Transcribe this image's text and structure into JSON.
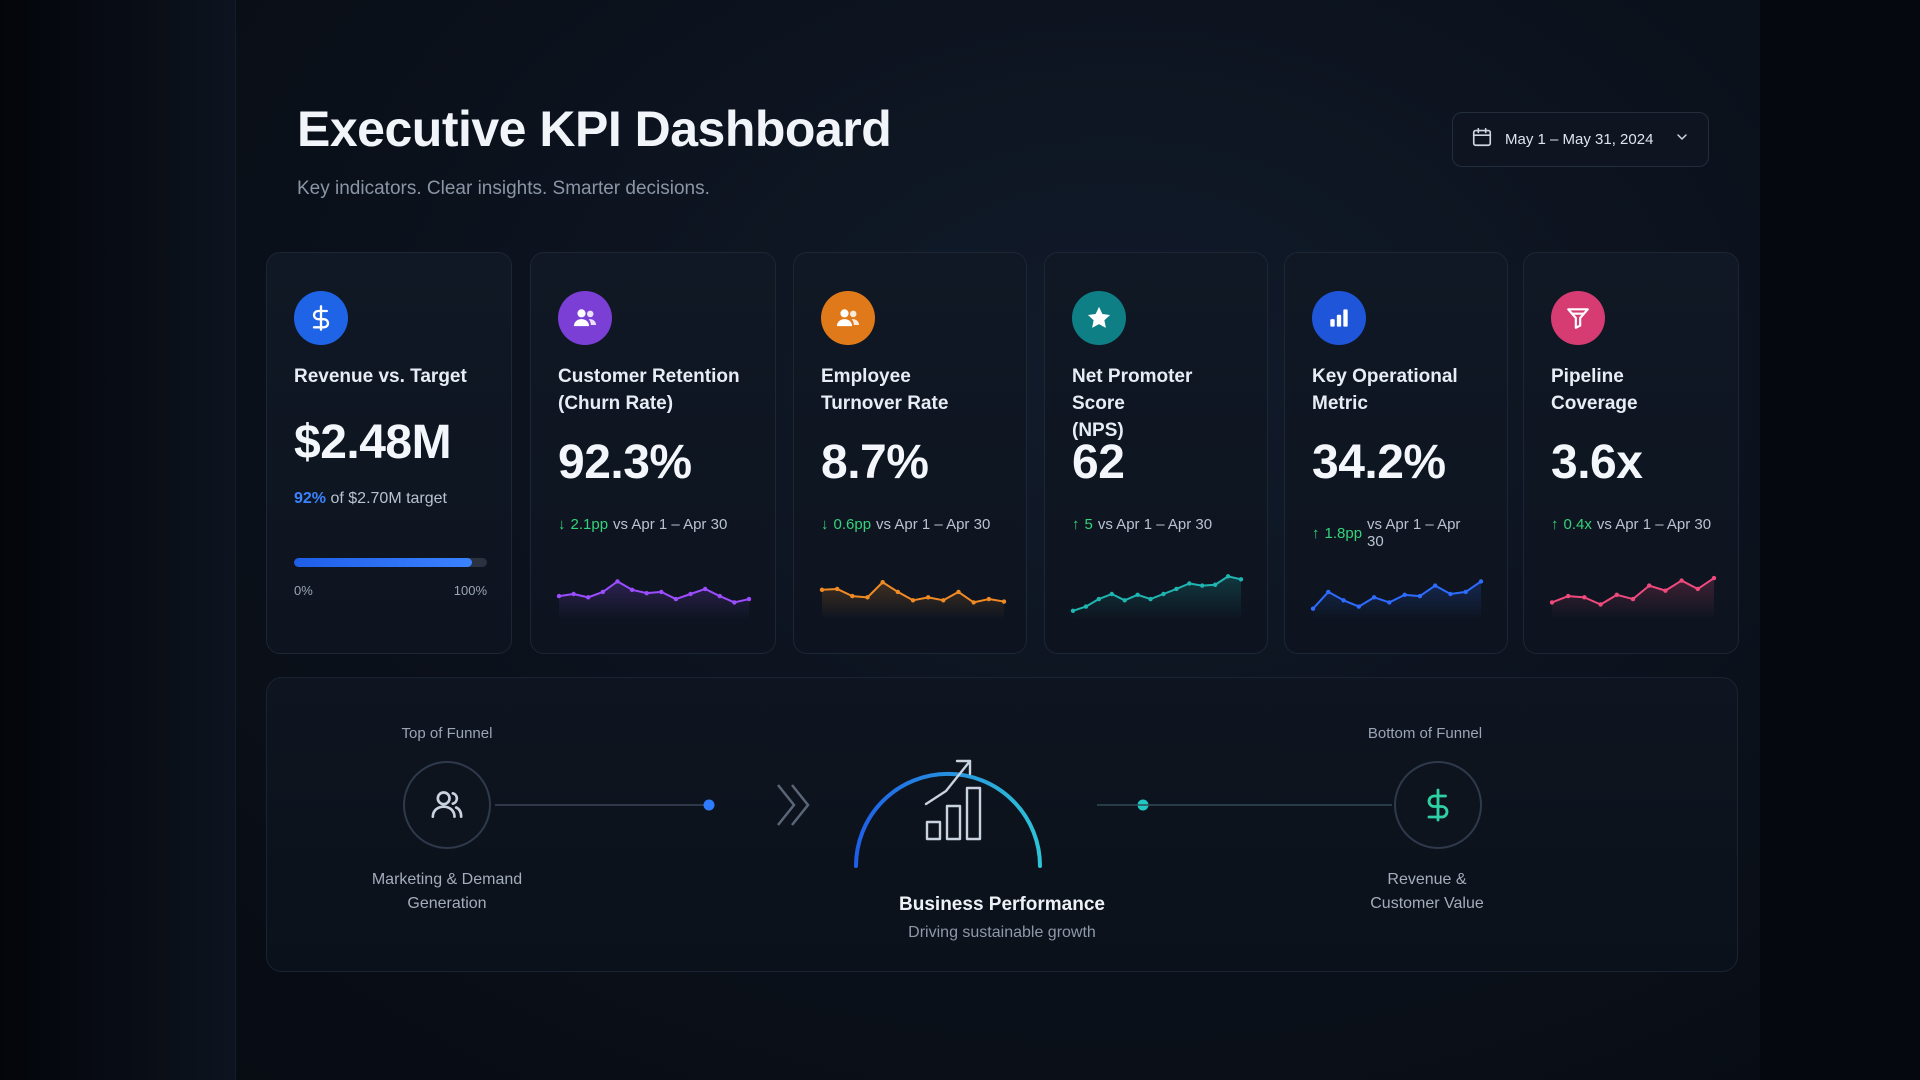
{
  "header": {
    "title": "Executive KPI Dashboard",
    "subtitle": "Key indicators. Clear insights. Smarter decisions."
  },
  "date_range": {
    "label": "May 1 – May 31, 2024",
    "icon": "calendar-icon",
    "dropdown_icon": "chevron-down-icon"
  },
  "kpis": [
    {
      "id": "revenue",
      "icon": "dollar-icon",
      "icon_color": "#1f63e6",
      "title": "Revenue vs. Target",
      "value": "$2.48M",
      "target_pct": "92%",
      "target_text": "of $2.70M target",
      "progress": 0.92,
      "progress_min": "0%",
      "progress_max": "100%"
    },
    {
      "id": "retention",
      "icon": "users-icon",
      "icon_color": "#7b3fd6",
      "title_lines": [
        "Customer Retention",
        "(Churn Rate)"
      ],
      "value": "92.3%",
      "delta_dir": "down",
      "delta_value": "2.1pp",
      "delta_text": "vs Apr 1 – Apr 30",
      "spark_color": "#9b4dff",
      "spark": [
        0.45,
        0.5,
        0.42,
        0.55,
        0.8,
        0.6,
        0.52,
        0.55,
        0.38,
        0.5,
        0.62,
        0.45,
        0.3,
        0.38
      ]
    },
    {
      "id": "turnover",
      "icon": "users-icon",
      "icon_color": "#e0791a",
      "title_lines": [
        "Employee",
        "Turnover Rate"
      ],
      "value": "8.7%",
      "delta_dir": "down",
      "delta_value": "0.6pp",
      "delta_text": "vs Apr 1 – Apr 30",
      "spark_color": "#f08a24",
      "spark": [
        0.6,
        0.62,
        0.45,
        0.42,
        0.78,
        0.55,
        0.35,
        0.42,
        0.35,
        0.55,
        0.3,
        0.38,
        0.32
      ]
    },
    {
      "id": "nps",
      "icon": "star-icon",
      "icon_color": "#0f7f86",
      "title_lines": [
        "Net Promoter Score",
        "(NPS)"
      ],
      "value": "62",
      "delta_dir": "up",
      "delta_value": "5",
      "delta_text": "vs Apr 1 – Apr 30",
      "spark_color": "#1fb5b0",
      "spark": [
        0.1,
        0.2,
        0.38,
        0.5,
        0.35,
        0.48,
        0.38,
        0.5,
        0.62,
        0.75,
        0.7,
        0.72,
        0.92,
        0.85
      ]
    },
    {
      "id": "operational",
      "icon": "bar-chart-icon",
      "icon_color": "#1f55d8",
      "title_lines": [
        "Key Operational",
        "Metric"
      ],
      "value": "34.2%",
      "delta_dir": "up",
      "delta_value": "1.8pp",
      "delta_text": "vs Apr 1 – Apr 30",
      "spark_color": "#2e6bff",
      "spark": [
        0.15,
        0.55,
        0.35,
        0.2,
        0.42,
        0.3,
        0.48,
        0.45,
        0.7,
        0.5,
        0.55,
        0.8
      ]
    },
    {
      "id": "pipeline",
      "icon": "funnel-icon",
      "icon_color": "#d63c72",
      "title_lines": [
        "Pipeline",
        "Coverage"
      ],
      "value": "3.6x",
      "delta_dir": "up",
      "delta_value": "0.4x",
      "delta_text": "vs Apr 1 – Apr 30",
      "spark_color": "#f04a7d",
      "spark": [
        0.3,
        0.45,
        0.42,
        0.25,
        0.48,
        0.38,
        0.7,
        0.58,
        0.82,
        0.62,
        0.88
      ]
    }
  ],
  "funnel": {
    "top_label": "Top of Funnel",
    "top_caption_lines": [
      "Marketing & Demand",
      "Generation"
    ],
    "center_title": "Business Performance",
    "center_subtitle": "Driving sustainable growth",
    "bottom_label": "Bottom of Funnel",
    "bottom_caption_lines": [
      "Revenue &",
      "Customer Value"
    ]
  }
}
